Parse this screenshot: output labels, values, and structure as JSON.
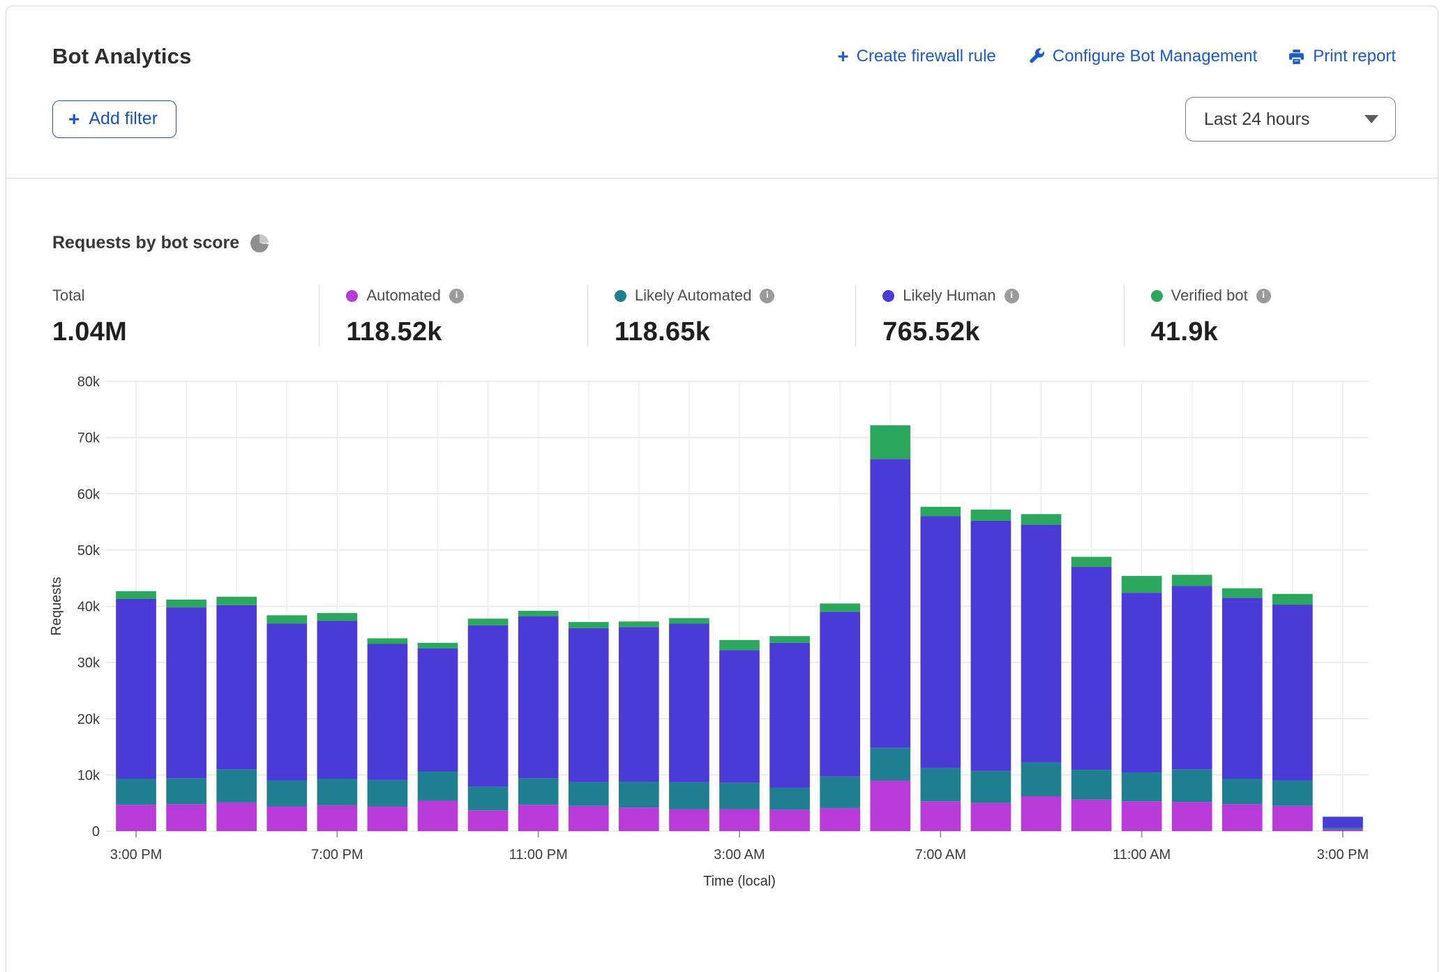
{
  "header": {
    "title": "Bot Analytics",
    "actions": [
      {
        "icon": "plus-icon",
        "label": "Create firewall rule"
      },
      {
        "icon": "wrench-icon",
        "label": "Configure Bot Management"
      },
      {
        "icon": "printer-icon",
        "label": "Print report"
      }
    ],
    "add_filter": {
      "icon": "plus-icon",
      "label": "Add filter"
    },
    "time_range": {
      "value": "Last 24 hours"
    }
  },
  "section": {
    "title": "Requests by bot score"
  },
  "stats": {
    "total": {
      "label": "Total",
      "value": "1.04M"
    },
    "series": [
      {
        "label": "Automated",
        "value": "118.52k",
        "color": "#B83BD9"
      },
      {
        "label": "Likely Automated",
        "value": "118.65k",
        "color": "#1F7F90"
      },
      {
        "label": "Likely Human",
        "value": "765.52k",
        "color": "#4A3AD6"
      },
      {
        "label": "Verified bot",
        "value": "41.9k",
        "color": "#2BA85D"
      }
    ]
  },
  "chart_data": {
    "type": "bar",
    "stacked": true,
    "title": "Requests by bot score",
    "xlabel": "Time (local)",
    "ylabel": "Requests",
    "ylim": [
      0,
      80000
    ],
    "y_ticks": [
      "0",
      "10k",
      "20k",
      "30k",
      "40k",
      "50k",
      "60k",
      "70k",
      "80k"
    ],
    "label_every": 4,
    "grid": "horizontal every 10k, faint hourly vertical",
    "legend_position": "top stats row",
    "categories": [
      "3:00 PM",
      "4:00 PM",
      "5:00 PM",
      "6:00 PM",
      "7:00 PM",
      "8:00 PM",
      "9:00 PM",
      "10:00 PM",
      "11:00 PM",
      "12:00 AM",
      "1:00 AM",
      "2:00 AM",
      "3:00 AM",
      "4:00 AM",
      "5:00 AM",
      "6:00 AM",
      "7:00 AM",
      "8:00 AM",
      "9:00 AM",
      "10:00 AM",
      "11:00 AM",
      "12:00 PM",
      "1:00 PM",
      "2:00 PM",
      "3:00 PM"
    ],
    "series": [
      {
        "name": "Automated",
        "color": "#B83BD9",
        "values": [
          4700,
          4800,
          5100,
          4400,
          4600,
          4400,
          5400,
          3700,
          4700,
          4500,
          4200,
          3900,
          3900,
          3800,
          4100,
          9000,
          5300,
          5000,
          6200,
          5600,
          5300,
          5200,
          4800,
          4500,
          300
        ]
      },
      {
        "name": "Likely Automated",
        "color": "#1F7F90",
        "values": [
          4600,
          4600,
          5900,
          4600,
          4700,
          4700,
          5200,
          4200,
          4700,
          4200,
          4600,
          4800,
          4700,
          3900,
          5600,
          5800,
          5900,
          5700,
          6000,
          5300,
          5100,
          5800,
          4500,
          4500,
          300
        ]
      },
      {
        "name": "Likely Human",
        "color": "#4A3AD6",
        "values": [
          32000,
          30400,
          29200,
          27900,
          28100,
          24200,
          21900,
          28700,
          28800,
          27400,
          27500,
          28200,
          23600,
          25800,
          29300,
          51400,
          44800,
          44500,
          42300,
          36100,
          32000,
          32600,
          32200,
          31300,
          1900
        ]
      },
      {
        "name": "Verified bot",
        "color": "#2BA85D",
        "values": [
          1400,
          1400,
          1500,
          1500,
          1400,
          1000,
          1000,
          1200,
          1000,
          1100,
          1000,
          1000,
          1800,
          1200,
          1500,
          6000,
          1700,
          2000,
          1900,
          1800,
          3000,
          2000,
          1700,
          1900,
          100
        ]
      }
    ]
  }
}
